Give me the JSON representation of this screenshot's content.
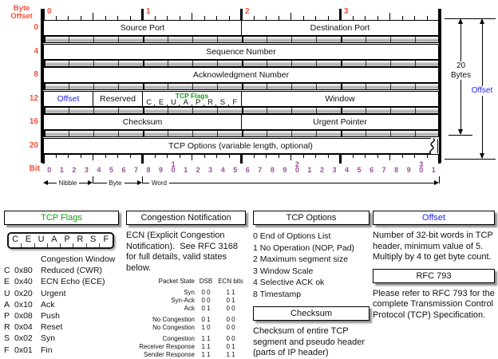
{
  "colors": {
    "red": "#f4503a",
    "purple": "#9c4f9c",
    "green": "#12a112",
    "blue": "#2424f0"
  },
  "diagram": {
    "byte_offset_line1": "Byte",
    "byte_offset_line2": "Offset",
    "byte_ruler_numbers": [
      "0",
      "1",
      "2",
      "3"
    ],
    "row_labels": [
      "0",
      "4",
      "8",
      "12",
      "16",
      "20"
    ],
    "rows": [
      {
        "fields": [
          {
            "label": "Source Port",
            "bits": 16
          },
          {
            "label": "Destination Port",
            "bits": 16
          }
        ]
      },
      {
        "fields": [
          {
            "label": "Sequence Number",
            "bits": 32
          }
        ]
      },
      {
        "fields": [
          {
            "label": "Acknowledgment Number",
            "bits": 32
          }
        ]
      },
      {
        "fields": [
          {
            "label": "Offset",
            "bits": 4,
            "color": "blue"
          },
          {
            "label": "Reserved",
            "bits": 4
          },
          {
            "label": "TCP Flags",
            "bits": 8,
            "type": "flags"
          },
          {
            "label": "Window",
            "bits": 16
          }
        ]
      },
      {
        "fields": [
          {
            "label": "Checksum",
            "bits": 16
          },
          {
            "label": "Urgent Pointer",
            "bits": 16
          }
        ]
      },
      {
        "fields": [
          {
            "label": "TCP Options (variable length, optional)",
            "bits": 32
          }
        ],
        "variable": true
      }
    ],
    "flag_letters": [
      "C",
      "E",
      "U",
      "A",
      "P",
      "R",
      "S",
      "F"
    ],
    "bit_label": "Bit",
    "bit_numbers": [
      "0",
      "1",
      "2",
      "3",
      "4",
      "5",
      "6",
      "7",
      "8",
      "9",
      [
        "1",
        "0"
      ],
      "1",
      "2",
      "3",
      "4",
      "5",
      "6",
      "7",
      "8",
      "9",
      [
        "2",
        "0"
      ],
      "1",
      "2",
      "3",
      "4",
      "5",
      "6",
      "7",
      "8",
      "9",
      [
        "3",
        "0"
      ],
      "1"
    ],
    "scale_labels": {
      "nibble": "Nibble",
      "byte": "Byte",
      "word": "Word"
    },
    "annotations": {
      "bytes_line1": "20",
      "bytes_line2": "Bytes",
      "offset": "Offset"
    }
  },
  "panels": {
    "tcp_flags": {
      "title": "TCP Flags",
      "letters": [
        "C",
        "E",
        "U",
        "A",
        "P",
        "R",
        "S",
        "F"
      ],
      "rows": [
        {
          "letter": "",
          "code": "",
          "desc": "Congestion Window"
        },
        {
          "letter": "C",
          "code": "0x80",
          "desc": "Reduced (CWR)"
        },
        {
          "letter": "E",
          "code": "0x40",
          "desc": "ECN Echo (ECE)"
        },
        {
          "letter": "U",
          "code": "0x20",
          "desc": "Urgent"
        },
        {
          "letter": "A",
          "code": "0x10",
          "desc": "Ack"
        },
        {
          "letter": "P",
          "code": "0x08",
          "desc": "Push"
        },
        {
          "letter": "R",
          "code": "0x04",
          "desc": "Reset"
        },
        {
          "letter": "S",
          "code": "0x02",
          "desc": "Syn"
        },
        {
          "letter": "F",
          "code": "0x01",
          "desc": "Fin"
        }
      ]
    },
    "congestion": {
      "title": "Congestion Notification",
      "body": "ECN (Explicit Congestion Notification).  See RFC 3168 for full details, valid states below.",
      "table": {
        "headers": [
          "Packet State",
          "DSB",
          "ECN bits"
        ],
        "groups": [
          [
            [
              "Syn",
              "0 0",
              "1 1"
            ],
            [
              "Syn-Ack",
              "0 0",
              "0 1"
            ],
            [
              "Ack",
              "0 1",
              "0 0"
            ]
          ],
          [
            [
              "No Congestion",
              "0 1",
              "0 0"
            ],
            [
              "No Congestion",
              "1 0",
              "0 0"
            ]
          ],
          [
            [
              "Congestion",
              "1 1",
              "0 0"
            ],
            [
              "Receiver Response",
              "1 1",
              "0 1"
            ],
            [
              "Sender Response",
              "1 1",
              "1 1"
            ]
          ]
        ]
      }
    },
    "tcp_options": {
      "title": "TCP Options",
      "items": [
        "0 End of Options List",
        "1 No Operation (NOP, Pad)",
        "2 Maximum segment size",
        "3 Window Scale",
        "4 Selective ACK ok",
        "8 Timestamp"
      ]
    },
    "checksum": {
      "title": "Checksum",
      "body": "Checksum of entire TCP segment and pseudo header (parts of IP header)"
    },
    "offset": {
      "title": "Offset",
      "body": "Number of 32-bit words in TCP header, minimum value of 5.  Multiply by 4 to get byte count."
    },
    "rfc": {
      "title": "RFC 793",
      "body": "Please refer to RFC 793 for the complete Transmission Control Protocol (TCP) Specification."
    }
  }
}
